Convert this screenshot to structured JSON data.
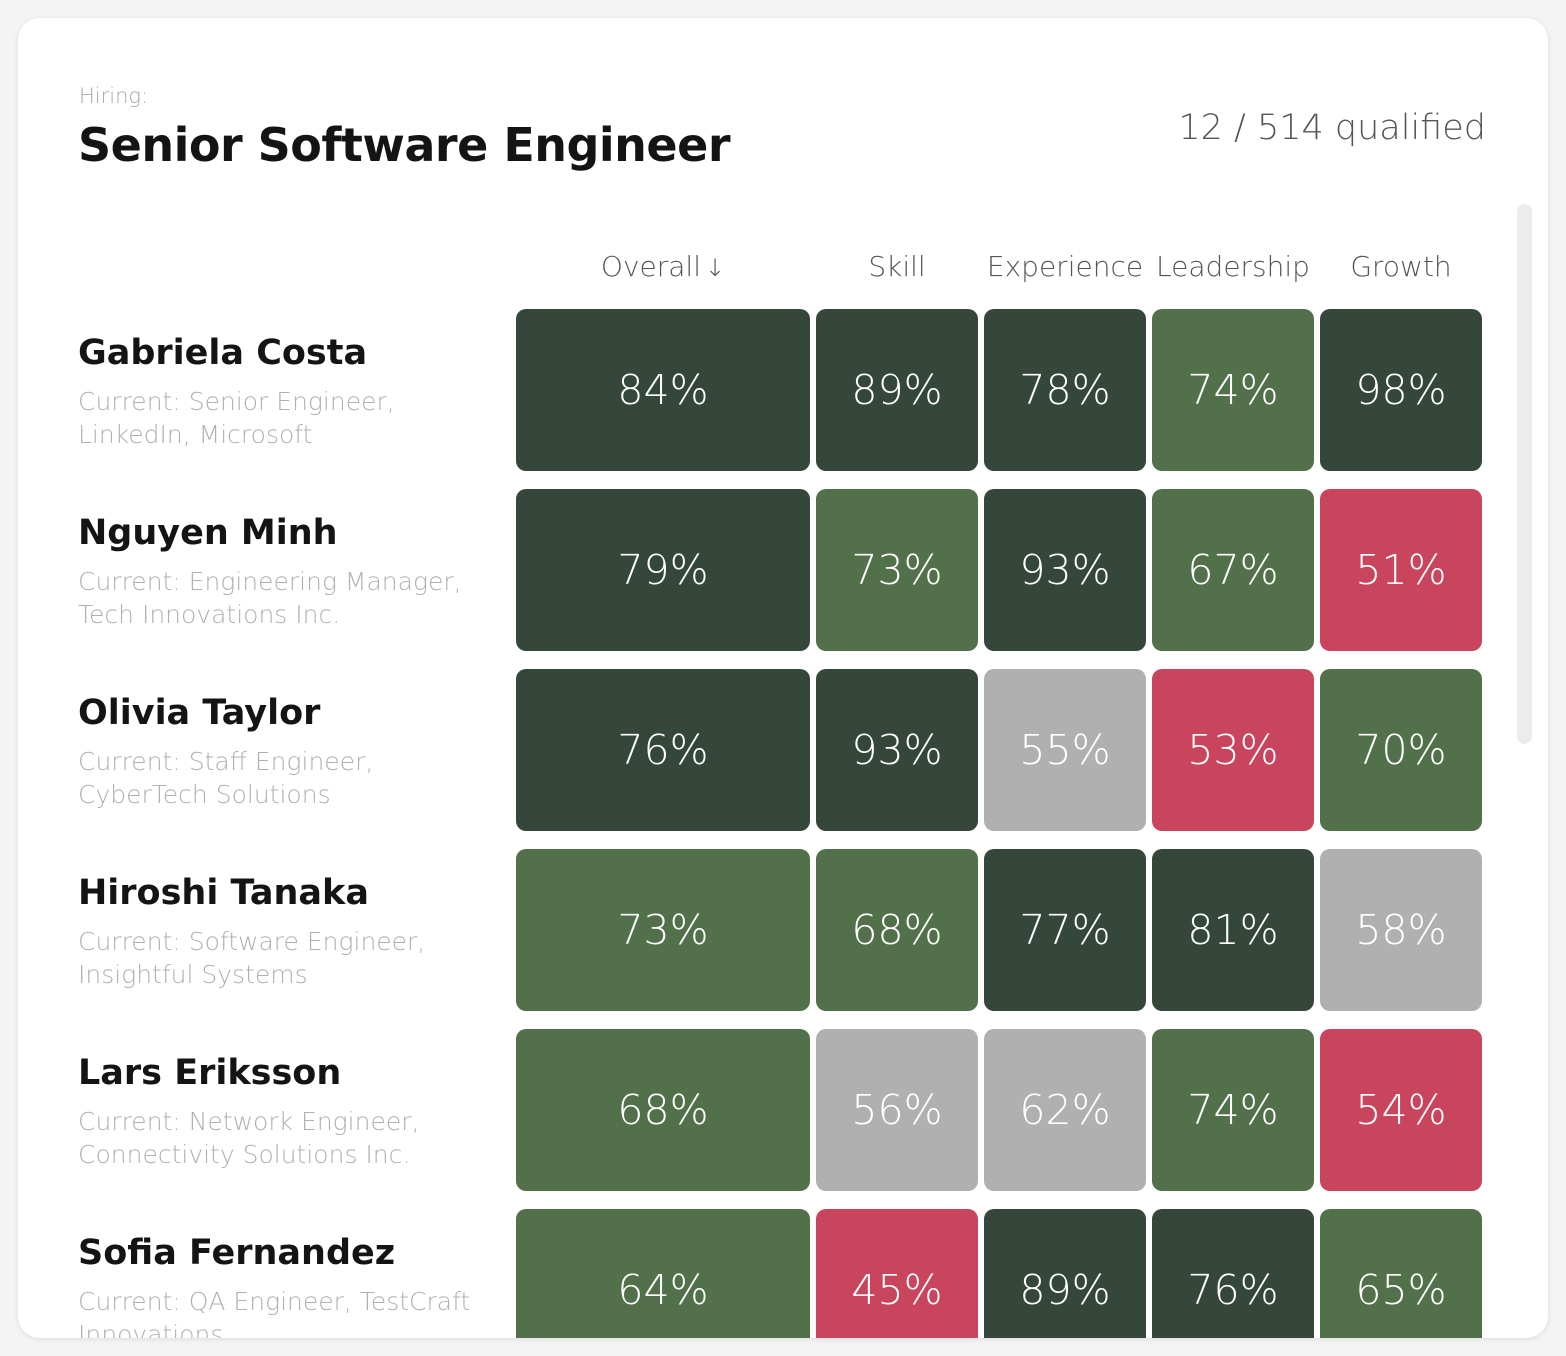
{
  "header": {
    "hiring_label": "Hiring:",
    "job_title": "Senior Software Engineer",
    "qualified": "12 / 514 qualified"
  },
  "columns": [
    {
      "label": "Overall",
      "sort_icon": "arrow-down-icon"
    },
    {
      "label": "Skill"
    },
    {
      "label": "Experience"
    },
    {
      "label": "Leadership"
    },
    {
      "label": "Growth"
    }
  ],
  "colors": {
    "strong": "#35463b",
    "good": "#527049",
    "neutral": "#b0b0b0",
    "weak": "#c9455d"
  },
  "candidates": [
    {
      "name": "Gabriela Costa",
      "current": "Current: Senior Engineer, LinkedIn, Microsoft",
      "scores": [
        "84%",
        "89%",
        "78%",
        "74%",
        "98%"
      ]
    },
    {
      "name": "Nguyen Minh",
      "current": "Current: Engineering Manager, Tech Innovations Inc.",
      "scores": [
        "79%",
        "73%",
        "93%",
        "67%",
        "51%"
      ]
    },
    {
      "name": "Olivia Taylor",
      "current": "Current: Staff Engineer, CyberTech Solutions",
      "scores": [
        "76%",
        "93%",
        "55%",
        "53%",
        "70%"
      ]
    },
    {
      "name": "Hiroshi Tanaka",
      "current": "Current: Software Engineer, Insightful Systems",
      "scores": [
        "73%",
        "68%",
        "77%",
        "81%",
        "58%"
      ]
    },
    {
      "name": "Lars Eriksson",
      "current": "Current: Network Engineer, Connectivity Solutions Inc.",
      "scores": [
        "68%",
        "56%",
        "62%",
        "74%",
        "54%"
      ]
    },
    {
      "name": "Sofia Fernandez",
      "current": "Current: QA Engineer, TestCraft Innovations",
      "scores": [
        "64%",
        "45%",
        "89%",
        "76%",
        "65%"
      ]
    }
  ]
}
